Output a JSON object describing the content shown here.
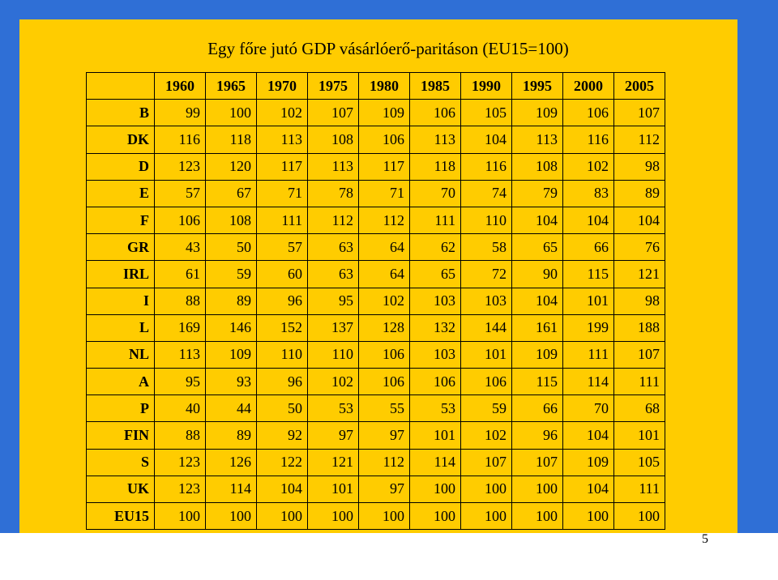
{
  "title": "Egy főre jutó GDP vásárlóerő-paritáson (EU15=100)",
  "page_number": "5",
  "columns": [
    "1960",
    "1965",
    "1970",
    "1975",
    "1980",
    "1985",
    "1990",
    "1995",
    "2000",
    "2005"
  ],
  "rows": [
    {
      "label": "B",
      "values": [
        "99",
        "100",
        "102",
        "107",
        "109",
        "106",
        "105",
        "109",
        "106",
        "107"
      ]
    },
    {
      "label": "DK",
      "values": [
        "116",
        "118",
        "113",
        "108",
        "106",
        "113",
        "104",
        "113",
        "116",
        "112"
      ]
    },
    {
      "label": "D",
      "values": [
        "123",
        "120",
        "117",
        "113",
        "117",
        "118",
        "116",
        "108",
        "102",
        "98"
      ]
    },
    {
      "label": "E",
      "values": [
        "57",
        "67",
        "71",
        "78",
        "71",
        "70",
        "74",
        "79",
        "83",
        "89"
      ]
    },
    {
      "label": "F",
      "values": [
        "106",
        "108",
        "111",
        "112",
        "112",
        "111",
        "110",
        "104",
        "104",
        "104"
      ]
    },
    {
      "label": "GR",
      "values": [
        "43",
        "50",
        "57",
        "63",
        "64",
        "62",
        "58",
        "65",
        "66",
        "76"
      ]
    },
    {
      "label": "IRL",
      "values": [
        "61",
        "59",
        "60",
        "63",
        "64",
        "65",
        "72",
        "90",
        "115",
        "121"
      ]
    },
    {
      "label": "I",
      "values": [
        "88",
        "89",
        "96",
        "95",
        "102",
        "103",
        "103",
        "104",
        "101",
        "98"
      ]
    },
    {
      "label": "L",
      "values": [
        "169",
        "146",
        "152",
        "137",
        "128",
        "132",
        "144",
        "161",
        "199",
        "188"
      ]
    },
    {
      "label": "NL",
      "values": [
        "113",
        "109",
        "110",
        "110",
        "106",
        "103",
        "101",
        "109",
        "111",
        "107"
      ]
    },
    {
      "label": "A",
      "values": [
        "95",
        "93",
        "96",
        "102",
        "106",
        "106",
        "106",
        "115",
        "114",
        "111"
      ]
    },
    {
      "label": "P",
      "values": [
        "40",
        "44",
        "50",
        "53",
        "55",
        "53",
        "59",
        "66",
        "70",
        "68"
      ]
    },
    {
      "label": "FIN",
      "values": [
        "88",
        "89",
        "92",
        "97",
        "97",
        "101",
        "102",
        "96",
        "104",
        "101"
      ]
    },
    {
      "label": "S",
      "values": [
        "123",
        "126",
        "122",
        "121",
        "112",
        "114",
        "107",
        "107",
        "109",
        "105"
      ]
    },
    {
      "label": "UK",
      "values": [
        "123",
        "114",
        "104",
        "101",
        "97",
        "100",
        "100",
        "100",
        "104",
        "111"
      ]
    },
    {
      "label": "EU15",
      "values": [
        "100",
        "100",
        "100",
        "100",
        "100",
        "100",
        "100",
        "100",
        "100",
        "100"
      ]
    }
  ],
  "colors": {
    "background": "#2f6fd6",
    "slide": "#ffcc00",
    "footer": "#ffffff"
  }
}
